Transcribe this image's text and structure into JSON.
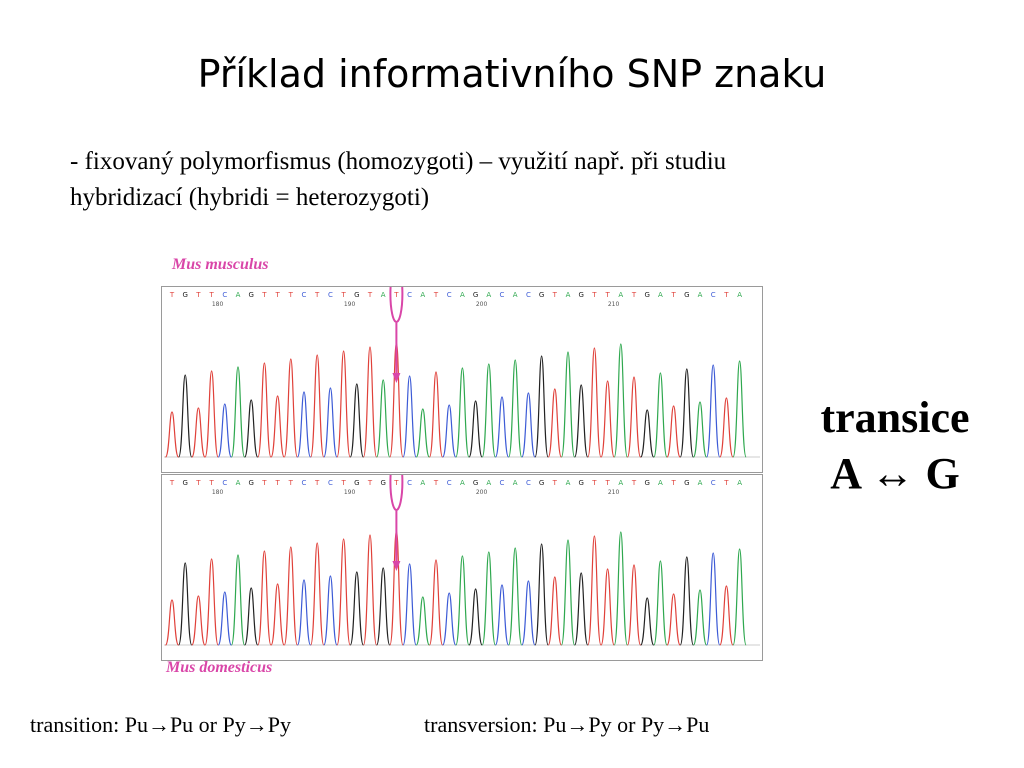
{
  "slide": {
    "title": "Příklad informativního SNP znaku",
    "bullet_line1": "- fixovaný polymorfismus (homozygoti) – využití např. při studiu",
    "bullet_line2": "hybridizací (hybridi = heterozygoti)"
  },
  "figure": {
    "top_label": "Mus musculus",
    "bottom_label": "Mus domesticus",
    "top_sequence": "TGTTCAGTTTCTCTGTATCATCAGACACGTAGTTATGATGACTA",
    "bottom_sequence": "TGTTCAGTTTCTCTGTGTCATCAGACACGTAGTTATGATGACTA",
    "position_markers": [
      "180",
      "190",
      "200",
      "210"
    ],
    "highlight_color": "#d946a8",
    "trace_colors": {
      "A": "#2fa84f",
      "C": "#3d5bd6",
      "G": "#222222",
      "T": "#e0413a"
    }
  },
  "side_note": {
    "line1": "transice",
    "line2": "A ↔ G"
  },
  "footer": {
    "transition": "transition: Pu→Pu or Py→Py",
    "transversion": "transversion: Pu→Py or Py→Pu"
  }
}
